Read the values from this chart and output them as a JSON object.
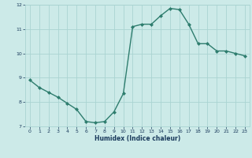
{
  "x": [
    0,
    1,
    2,
    3,
    4,
    5,
    6,
    7,
    8,
    9,
    10,
    11,
    12,
    13,
    14,
    15,
    16,
    17,
    18,
    19,
    20,
    21,
    22,
    23
  ],
  "y": [
    8.9,
    8.6,
    8.4,
    8.2,
    7.95,
    7.7,
    7.2,
    7.15,
    7.2,
    7.6,
    8.35,
    11.1,
    11.2,
    11.2,
    11.55,
    11.85,
    11.8,
    11.2,
    10.4,
    10.4,
    10.1,
    10.1,
    10.0,
    9.9
  ],
  "xlabel": "Humidex (Indice chaleur)",
  "line_color": "#2e7d6e",
  "marker_color": "#2e7d6e",
  "bg_color": "#cceae8",
  "grid_color": "#aad4d2",
  "tick_color": "#1a3a5c",
  "xlabel_color": "#1a3a5c",
  "ylim": [
    7.0,
    12.0
  ],
  "xlim": [
    -0.5,
    23.5
  ],
  "yticks": [
    7,
    8,
    9,
    10,
    11,
    12
  ],
  "xticks": [
    0,
    1,
    2,
    3,
    4,
    5,
    6,
    7,
    8,
    9,
    10,
    11,
    12,
    13,
    14,
    15,
    16,
    17,
    18,
    19,
    20,
    21,
    22,
    23
  ]
}
